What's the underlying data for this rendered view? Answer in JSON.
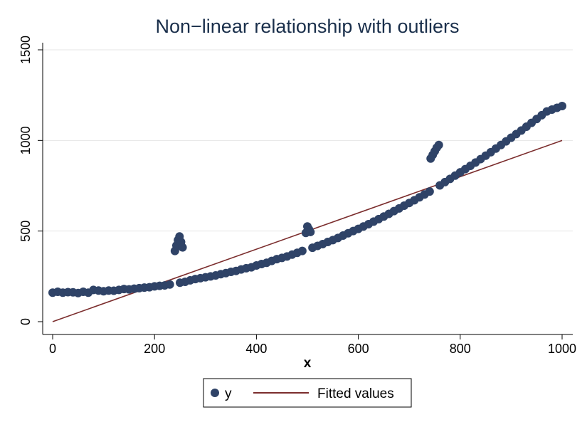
{
  "chart_data": {
    "type": "scatter",
    "title": "Non−linear relationship with outliers",
    "xlabel": "x",
    "ylabel": "",
    "xlim": [
      0,
      1000
    ],
    "ylim": [
      0,
      1500
    ],
    "xticks": [
      "0",
      "200",
      "400",
      "600",
      "800",
      "1000"
    ],
    "yticks": [
      "0",
      "500",
      "1000",
      "1500"
    ],
    "grid": "horizontal",
    "legend_position": "bottom",
    "series": [
      {
        "name": "y",
        "kind": "scatter",
        "color": "#2f4367",
        "points": [
          [
            0,
            160
          ],
          [
            10,
            165
          ],
          [
            20,
            160
          ],
          [
            30,
            163
          ],
          [
            40,
            162
          ],
          [
            50,
            158
          ],
          [
            60,
            165
          ],
          [
            70,
            160
          ],
          [
            80,
            175
          ],
          [
            90,
            172
          ],
          [
            100,
            168
          ],
          [
            110,
            172
          ],
          [
            120,
            171
          ],
          [
            130,
            175
          ],
          [
            140,
            180
          ],
          [
            150,
            178
          ],
          [
            160,
            182
          ],
          [
            170,
            185
          ],
          [
            180,
            188
          ],
          [
            190,
            190
          ],
          [
            200,
            195
          ],
          [
            210,
            198
          ],
          [
            220,
            200
          ],
          [
            230,
            205
          ],
          [
            250,
            215
          ],
          [
            260,
            220
          ],
          [
            270,
            228
          ],
          [
            280,
            235
          ],
          [
            290,
            240
          ],
          [
            300,
            245
          ],
          [
            310,
            250
          ],
          [
            320,
            255
          ],
          [
            330,
            262
          ],
          [
            340,
            268
          ],
          [
            350,
            275
          ],
          [
            360,
            280
          ],
          [
            370,
            288
          ],
          [
            380,
            295
          ],
          [
            390,
            300
          ],
          [
            400,
            310
          ],
          [
            410,
            318
          ],
          [
            420,
            325
          ],
          [
            430,
            335
          ],
          [
            440,
            345
          ],
          [
            450,
            352
          ],
          [
            460,
            360
          ],
          [
            470,
            370
          ],
          [
            480,
            380
          ],
          [
            490,
            390
          ],
          [
            510,
            408
          ],
          [
            520,
            418
          ],
          [
            530,
            428
          ],
          [
            540,
            440
          ],
          [
            550,
            450
          ],
          [
            560,
            462
          ],
          [
            570,
            475
          ],
          [
            580,
            488
          ],
          [
            590,
            500
          ],
          [
            600,
            512
          ],
          [
            610,
            525
          ],
          [
            620,
            538
          ],
          [
            630,
            552
          ],
          [
            640,
            566
          ],
          [
            650,
            580
          ],
          [
            660,
            595
          ],
          [
            670,
            610
          ],
          [
            680,
            625
          ],
          [
            690,
            640
          ],
          [
            700,
            655
          ],
          [
            710,
            670
          ],
          [
            720,
            686
          ],
          [
            730,
            702
          ],
          [
            740,
            718
          ],
          [
            760,
            752
          ],
          [
            770,
            770
          ],
          [
            780,
            788
          ],
          [
            790,
            806
          ],
          [
            800,
            824
          ],
          [
            810,
            842
          ],
          [
            820,
            860
          ],
          [
            830,
            878
          ],
          [
            840,
            897
          ],
          [
            850,
            916
          ],
          [
            860,
            935
          ],
          [
            870,
            955
          ],
          [
            880,
            975
          ],
          [
            890,
            995
          ],
          [
            900,
            1015
          ],
          [
            910,
            1035
          ],
          [
            920,
            1055
          ],
          [
            930,
            1076
          ],
          [
            940,
            1097
          ],
          [
            950,
            1118
          ],
          [
            960,
            1139
          ],
          [
            970,
            1160
          ],
          [
            980,
            1170
          ],
          [
            990,
            1180
          ],
          [
            1000,
            1190
          ],
          [
            240,
            390
          ],
          [
            243,
            420
          ],
          [
            246,
            450
          ],
          [
            249,
            470
          ],
          [
            252,
            440
          ],
          [
            255,
            410
          ],
          [
            497,
            490
          ],
          [
            500,
            525
          ],
          [
            503,
            510
          ],
          [
            506,
            495
          ],
          [
            742,
            900
          ],
          [
            746,
            920
          ],
          [
            750,
            940
          ],
          [
            754,
            960
          ],
          [
            758,
            975
          ]
        ]
      },
      {
        "name": "Fitted values",
        "kind": "line",
        "color": "#7b2d2d",
        "points": [
          [
            0,
            0
          ],
          [
            1000,
            1000
          ]
        ]
      }
    ]
  }
}
